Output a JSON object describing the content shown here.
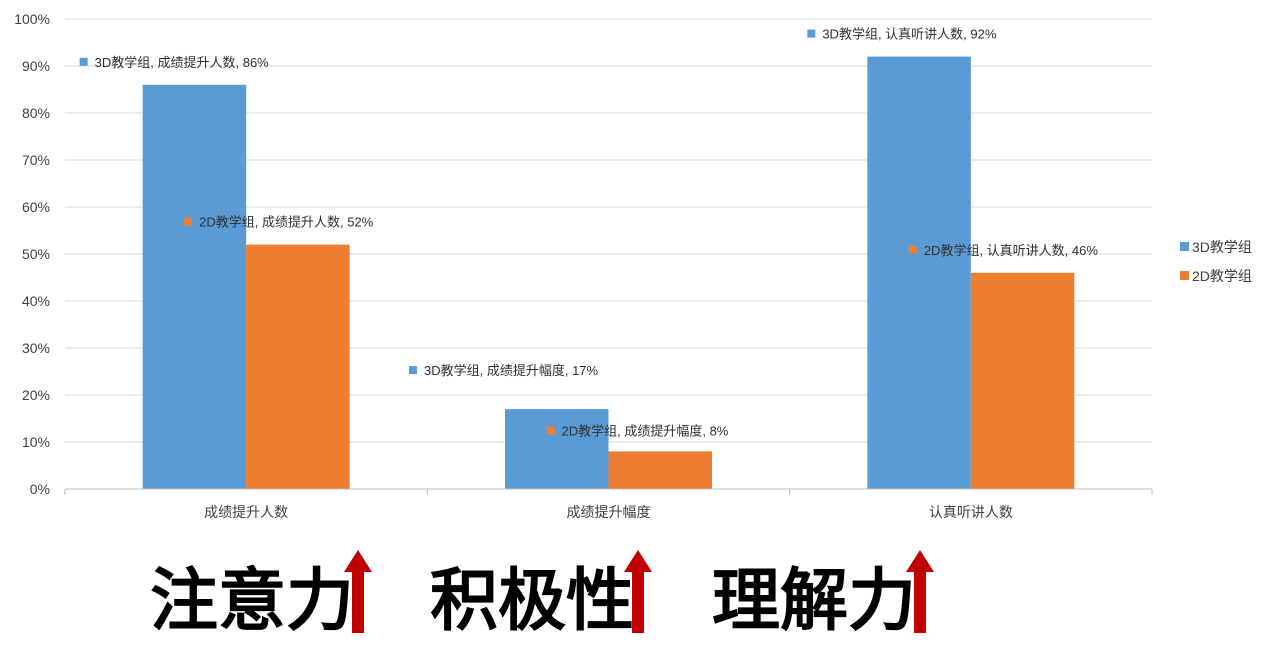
{
  "chart_data": {
    "type": "bar",
    "categories": [
      "成绩提升人数",
      "成绩提升幅度",
      "认真听讲人数"
    ],
    "series": [
      {
        "name": "3D教学组",
        "values": [
          86,
          17,
          92
        ],
        "color": "#5B9BD5",
        "labels": [
          "3D教学组, 成绩提升人数, 86%",
          "3D教学组, 成绩提升幅度, 17%",
          "3D教学组, 认真听讲人数, 92%"
        ]
      },
      {
        "name": "2D教学组",
        "values": [
          52,
          8,
          46
        ],
        "color": "#ED7D31",
        "labels": [
          "2D教学组, 成绩提升人数, 52%",
          "2D教学组, 成绩提升幅度, 8%",
          "2D教学组, 认真听讲人数, 46%"
        ]
      }
    ],
    "ylim": [
      0,
      100
    ],
    "yticks": [
      "0%",
      "10%",
      "20%",
      "30%",
      "40%",
      "50%",
      "60%",
      "70%",
      "80%",
      "90%",
      "100%"
    ],
    "grid": true,
    "legend": "right"
  },
  "captions": [
    {
      "text": "注意力",
      "arrow": "up-arrow"
    },
    {
      "text": "积极性",
      "arrow": "up-arrow"
    },
    {
      "text": "理解力",
      "arrow": "up-arrow"
    }
  ],
  "arrow_color": "#C00000"
}
